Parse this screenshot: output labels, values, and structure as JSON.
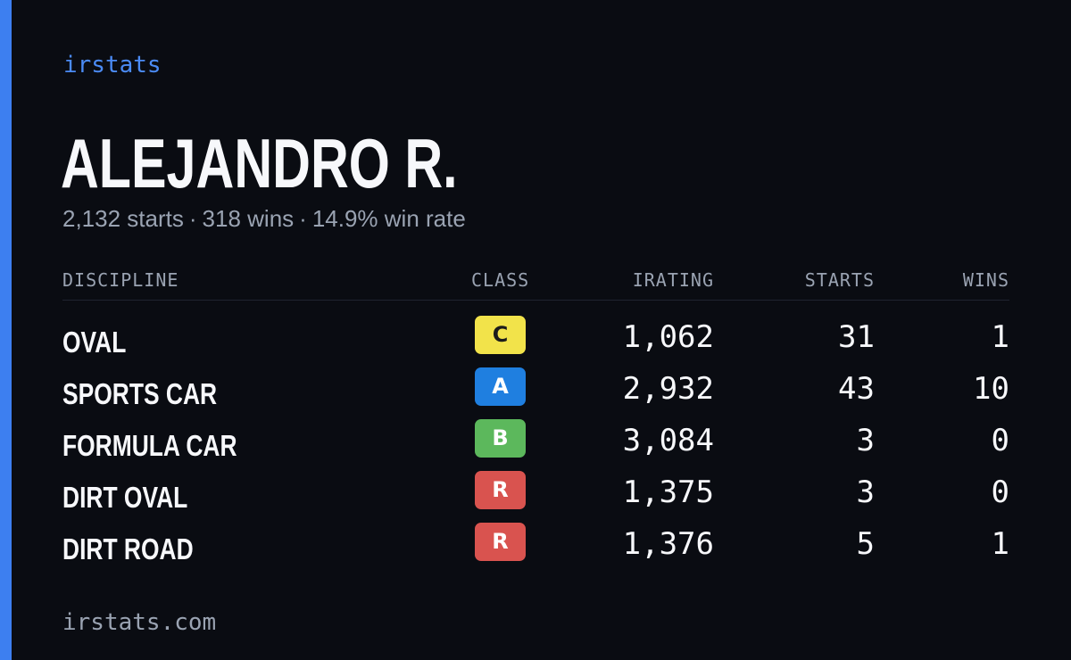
{
  "brand": "irstats",
  "player": {
    "name": "ALEJANDRO R.",
    "starts_text": "2,132 starts",
    "wins_text": "318 wins",
    "winrate_text": "14.9% win rate",
    "separator": "·"
  },
  "table": {
    "headers": {
      "discipline": "DISCIPLINE",
      "class": "CLASS",
      "irating": "IRATING",
      "starts": "STARTS",
      "wins": "WINS"
    },
    "rows": [
      {
        "discipline": "OVAL",
        "class": "C",
        "class_color": "#f2e34a",
        "class_text_color": "#1b1b1b",
        "irating": "1,062",
        "starts": "31",
        "wins": "1"
      },
      {
        "discipline": "SPORTS CAR",
        "class": "A",
        "class_color": "#1f7fe0",
        "class_text_color": "#ffffff",
        "irating": "2,932",
        "starts": "43",
        "wins": "10"
      },
      {
        "discipline": "FORMULA CAR",
        "class": "B",
        "class_color": "#5cb85c",
        "class_text_color": "#ffffff",
        "irating": "3,084",
        "starts": "3",
        "wins": "0"
      },
      {
        "discipline": "DIRT OVAL",
        "class": "R",
        "class_color": "#d9534f",
        "class_text_color": "#ffffff",
        "irating": "1,375",
        "starts": "3",
        "wins": "0"
      },
      {
        "discipline": "DIRT ROAD",
        "class": "R",
        "class_color": "#d9534f",
        "class_text_color": "#ffffff",
        "irating": "1,376",
        "starts": "5",
        "wins": "1"
      }
    ]
  },
  "footer": "irstats.com",
  "colors": {
    "accent": "#3d7ff0",
    "background": "#0a0c12",
    "muted_text": "#9aa3b2"
  }
}
